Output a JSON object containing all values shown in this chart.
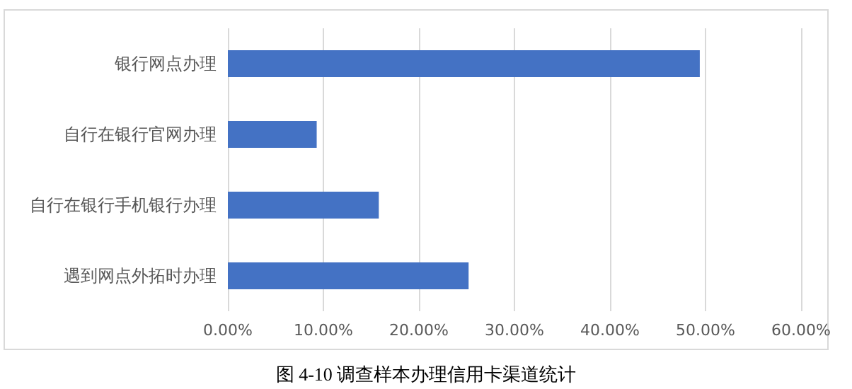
{
  "chart_data": {
    "type": "bar",
    "orientation": "horizontal",
    "categories": [
      "银行网点办理",
      "自行在银行官网办理",
      "自行在银行手机银行办理",
      "遇到网点外拓时办理"
    ],
    "values": [
      49.4,
      9.3,
      15.8,
      25.2
    ],
    "color": "#4472c4",
    "xlim": [
      0,
      60
    ],
    "xticks": [
      {
        "value": 0,
        "label": "0.00%"
      },
      {
        "value": 10,
        "label": "10.00%"
      },
      {
        "value": 20,
        "label": "20.00%"
      },
      {
        "value": 30,
        "label": "30.00%"
      },
      {
        "value": 40,
        "label": "40.00%"
      },
      {
        "value": 50,
        "label": "50.00%"
      },
      {
        "value": 60,
        "label": "60.00%"
      }
    ],
    "grid": "x",
    "annotations": [
      "图 4-10 调查样本办理信用卡渠道统计"
    ]
  }
}
